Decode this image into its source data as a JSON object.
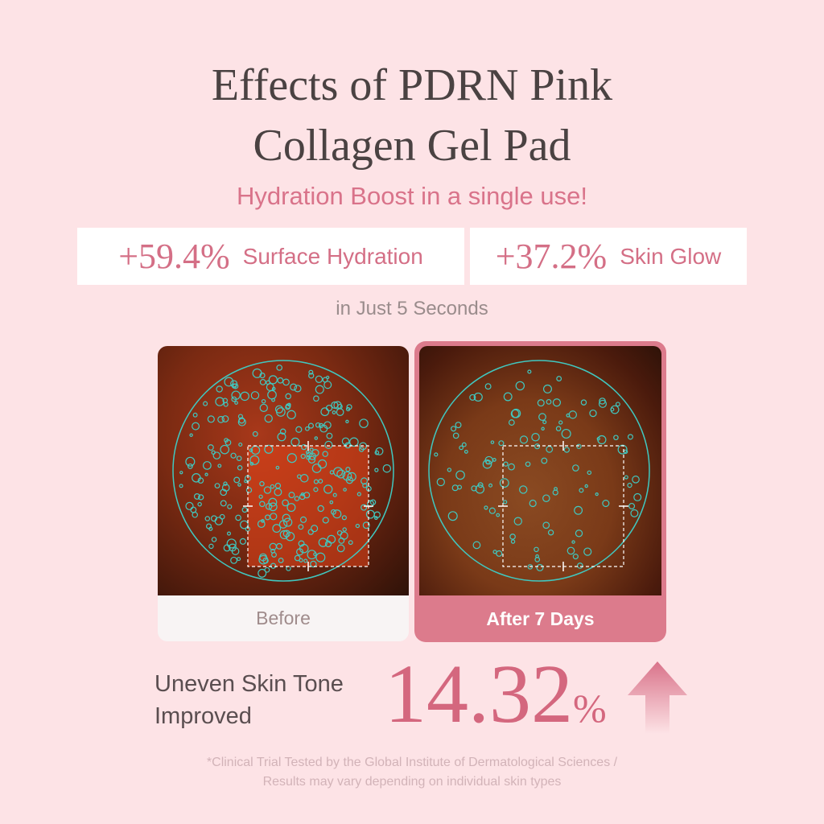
{
  "title": {
    "line1": "Effects of PDRN Pink",
    "line2": "Collagen Gel Pad"
  },
  "subtitle": "Hydration Boost in a single use!",
  "stats": [
    {
      "value": "+59.4%",
      "label": "Surface Hydration"
    },
    {
      "value": "+37.2%",
      "label": "Skin Glow"
    }
  ],
  "stats_note": "in Just 5 Seconds",
  "comparison": {
    "before_label": "Before",
    "after_label": "After 7 Days"
  },
  "result": {
    "line1": "Uneven Skin Tone",
    "line2": "Improved",
    "value": "14.32",
    "unit": "%",
    "arrow_icon": "arrow-up-icon"
  },
  "footnote": {
    "line1": "*Clinical Trial Tested by the Global Institute of Dermatological Sciences /",
    "line2": "Results may vary depending on individual skin types"
  },
  "colors": {
    "background": "#fde3e6",
    "accent": "#d9738a",
    "highlight": "#40c8c0"
  }
}
